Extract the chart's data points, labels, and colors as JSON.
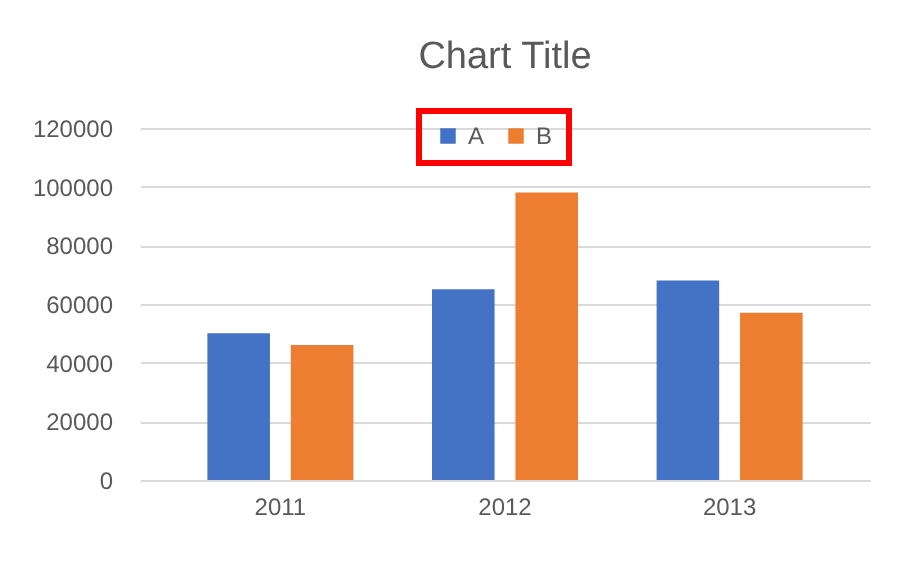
{
  "chart_data": {
    "type": "bar",
    "title": "Chart Title",
    "categories": [
      "2011",
      "2012",
      "2013"
    ],
    "series": [
      {
        "name": "A",
        "color": "#4472c4",
        "values": [
          50000,
          65000,
          68000
        ]
      },
      {
        "name": "B",
        "color": "#ed7d31",
        "values": [
          46000,
          98000,
          57000
        ]
      }
    ],
    "ylim": [
      0,
      120000
    ],
    "yticks": [
      0,
      20000,
      40000,
      60000,
      80000,
      100000,
      120000
    ],
    "grid": "y",
    "legend": "top"
  }
}
